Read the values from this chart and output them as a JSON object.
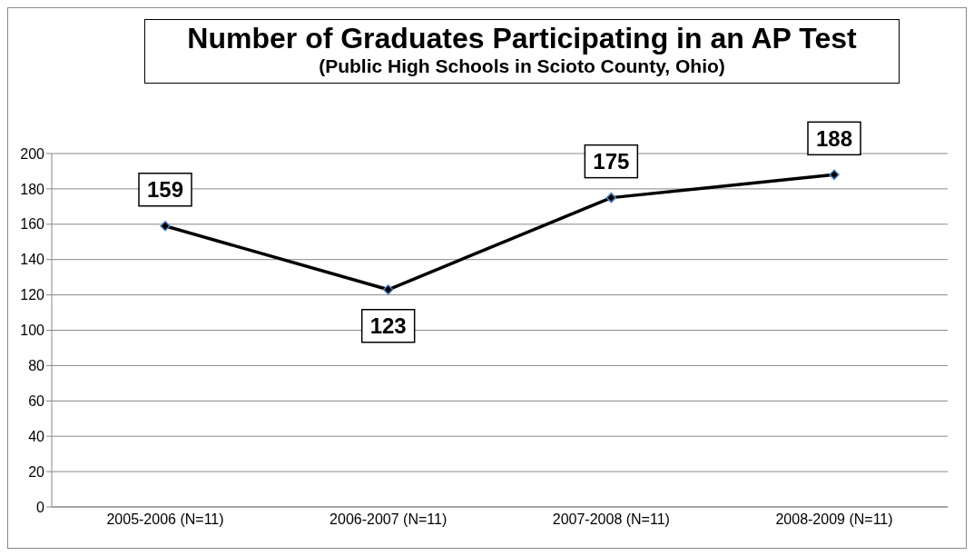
{
  "chart_data": {
    "type": "line",
    "title": "Number of Graduates Participating in an AP Test",
    "subtitle": "(Public High Schools in Scioto County, Ohio)",
    "categories": [
      "2005-2006 (N=11)",
      "2006-2007 (N=11)",
      "2007-2008 (N=11)",
      "2008-2009 (N=11)"
    ],
    "series": [
      {
        "color": "#000000",
        "values": [
          159,
          123,
          175,
          188
        ]
      }
    ],
    "ylim": [
      0,
      200
    ],
    "yticks": [
      0,
      20,
      40,
      60,
      80,
      100,
      120,
      140,
      160,
      180,
      200
    ],
    "grid": "y",
    "marker": "diamond",
    "line_style": "solid",
    "data_labels": true
  }
}
